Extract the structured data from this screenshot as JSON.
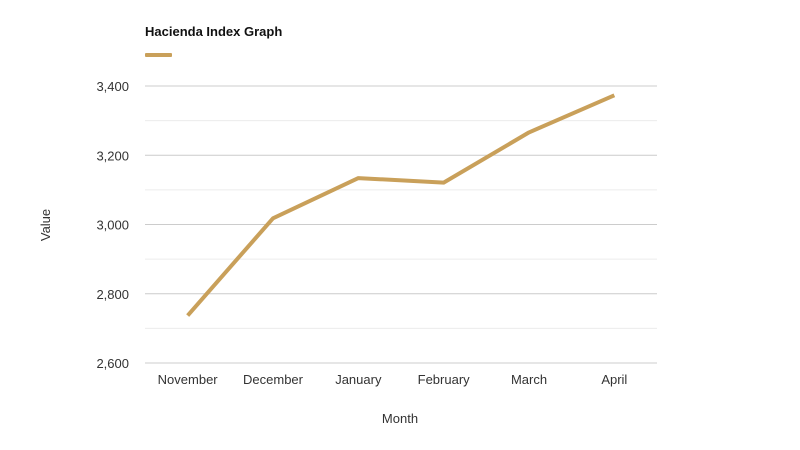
{
  "chart_data": {
    "type": "line",
    "title": "Hacienda Index Graph",
    "xlabel": "Month",
    "ylabel": "Value",
    "categories": [
      "November",
      "December",
      "January",
      "February",
      "March",
      "April"
    ],
    "series": [
      {
        "values": [
          2737,
          3018,
          3134,
          3121,
          3266,
          3373
        ],
        "color": "#c9a05a"
      }
    ],
    "ylim": [
      2600,
      3400
    ],
    "yticks": [
      2600,
      2800,
      3000,
      3200,
      3400
    ],
    "ytick_labels": [
      "2,600",
      "2,800",
      "3,000",
      "3,200",
      "3,400"
    ],
    "grid": true,
    "legend": "top-left"
  }
}
